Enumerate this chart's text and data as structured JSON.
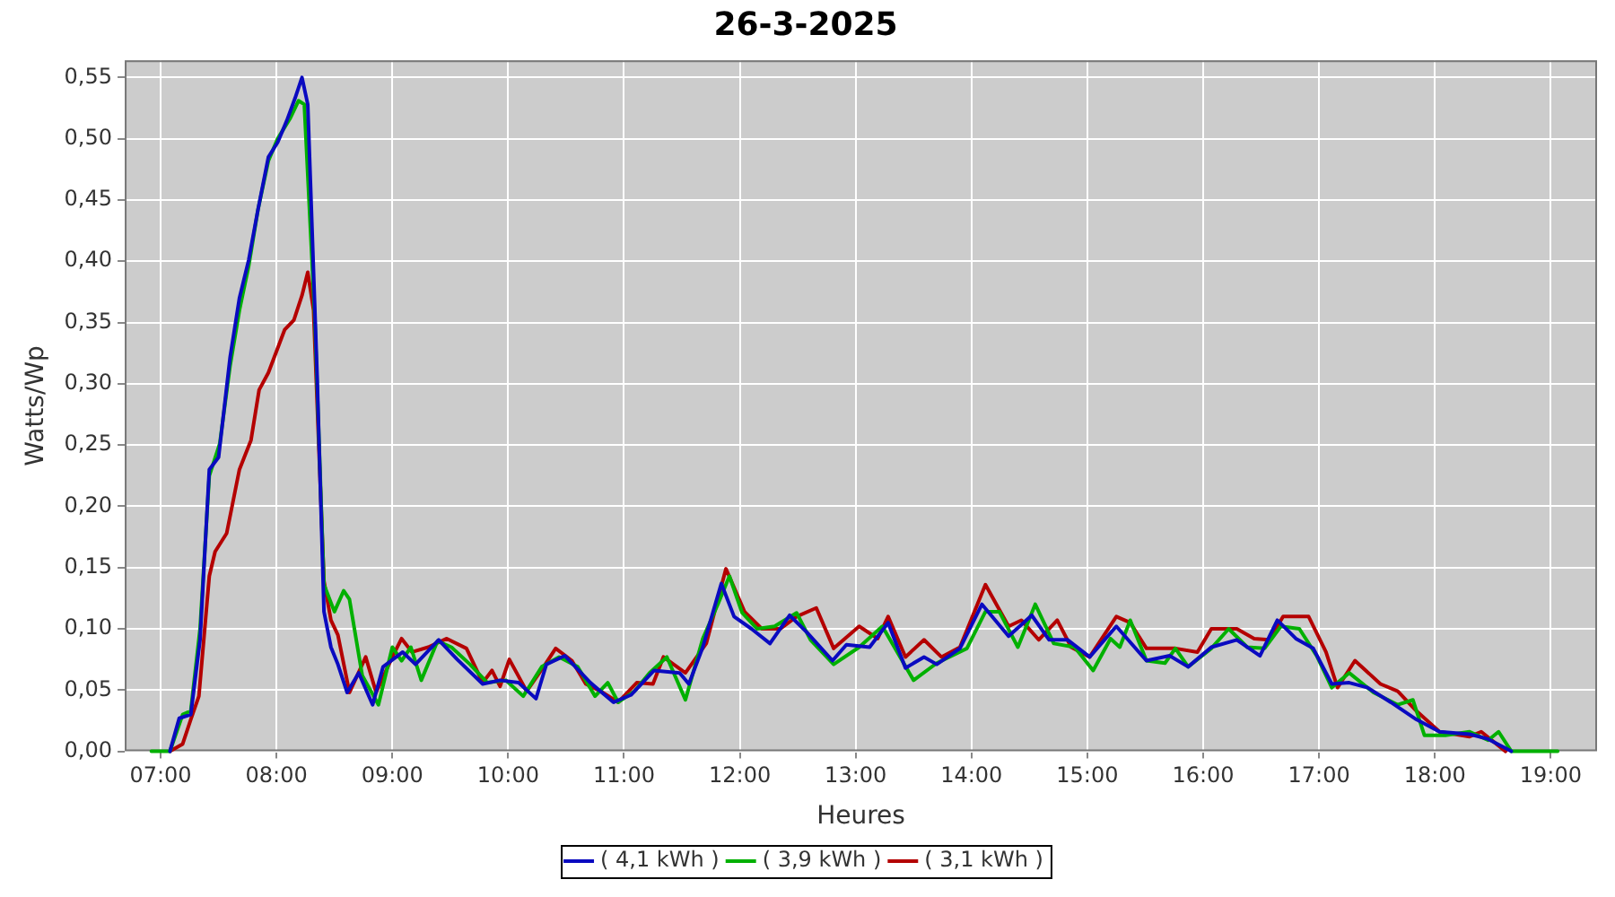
{
  "chart_data": {
    "type": "line",
    "title": "26-3-2025",
    "xlabel": "Heures",
    "ylabel": "Watts/Wp",
    "xlim": [
      6.69,
      19.4
    ],
    "xticks": [
      {
        "value": 7,
        "label": "07:00"
      },
      {
        "value": 8,
        "label": "08:00"
      },
      {
        "value": 9,
        "label": "09:00"
      },
      {
        "value": 10,
        "label": "10:00"
      },
      {
        "value": 11,
        "label": "11:00"
      },
      {
        "value": 12,
        "label": "12:00"
      },
      {
        "value": 13,
        "label": "13:00"
      },
      {
        "value": 14,
        "label": "14:00"
      },
      {
        "value": 15,
        "label": "15:00"
      },
      {
        "value": 16,
        "label": "16:00"
      },
      {
        "value": 17,
        "label": "17:00"
      },
      {
        "value": 18,
        "label": "18:00"
      },
      {
        "value": 19,
        "label": "19:00"
      }
    ],
    "ylim": [
      0,
      0.564
    ],
    "yticks": [
      {
        "value": 0,
        "label": "0,00"
      },
      {
        "value": 0.05,
        "label": "0,05"
      },
      {
        "value": 0.1,
        "label": "0,10"
      },
      {
        "value": 0.15,
        "label": "0,15"
      },
      {
        "value": 0.2,
        "label": "0,20"
      },
      {
        "value": 0.25,
        "label": "0,25"
      },
      {
        "value": 0.3,
        "label": "0,30"
      },
      {
        "value": 0.35,
        "label": "0,35"
      },
      {
        "value": 0.4,
        "label": "0,40"
      },
      {
        "value": 0.45,
        "label": "0,45"
      },
      {
        "value": 0.5,
        "label": "0,50"
      },
      {
        "value": 0.55,
        "label": "0,55"
      }
    ],
    "grid": true,
    "legend": "bottom",
    "marker": "none",
    "line_style": "solid",
    "series": [
      {
        "name": "( 4,1 kWh )",
        "color": "#0a0ac0",
        "x": [
          7.08,
          7.16,
          7.26,
          7.34,
          7.42,
          7.5,
          7.6,
          7.68,
          7.76,
          7.84,
          7.93,
          8.01,
          8.09,
          8.16,
          8.22,
          8.27,
          8.35,
          8.41,
          8.47,
          8.53,
          8.61,
          8.71,
          8.83,
          8.92,
          9.09,
          9.2,
          9.4,
          9.56,
          9.78,
          9.93,
          10.09,
          10.24,
          10.33,
          10.49,
          10.71,
          10.91,
          11.06,
          11.26,
          11.48,
          11.56,
          11.68,
          11.84,
          11.95,
          12.1,
          12.26,
          12.43,
          12.58,
          12.8,
          12.92,
          13.12,
          13.28,
          13.43,
          13.59,
          13.7,
          13.9,
          14.09,
          14.32,
          14.52,
          14.67,
          14.83,
          15.02,
          15.25,
          15.51,
          15.71,
          15.87,
          16.07,
          16.29,
          16.49,
          16.64,
          16.8,
          16.95,
          17.11,
          17.26,
          17.42,
          17.62,
          17.84,
          18.04,
          18.3,
          18.46,
          18.66
        ],
        "values": [
          0,
          0.027,
          0.03,
          0.091,
          0.23,
          0.24,
          0.322,
          0.37,
          0.401,
          0.442,
          0.485,
          0.497,
          0.515,
          0.533,
          0.55,
          0.528,
          0.309,
          0.114,
          0.085,
          0.071,
          0.048,
          0.064,
          0.038,
          0.069,
          0.081,
          0.071,
          0.091,
          0.075,
          0.055,
          0.058,
          0.056,
          0.043,
          0.071,
          0.078,
          0.056,
          0.04,
          0.046,
          0.066,
          0.064,
          0.055,
          0.085,
          0.137,
          0.11,
          0.1,
          0.088,
          0.111,
          0.097,
          0.074,
          0.087,
          0.085,
          0.105,
          0.068,
          0.077,
          0.071,
          0.084,
          0.12,
          0.094,
          0.111,
          0.091,
          0.091,
          0.077,
          0.102,
          0.074,
          0.078,
          0.069,
          0.085,
          0.091,
          0.078,
          0.107,
          0.092,
          0.084,
          0.055,
          0.056,
          0.052,
          0.04,
          0.026,
          0.016,
          0.014,
          0.01,
          0
        ]
      },
      {
        "name": "( 3,9 kWh )",
        "color": "#00b000",
        "x": [
          6.92,
          7.08,
          7.19,
          7.26,
          7.34,
          7.42,
          7.51,
          7.6,
          7.68,
          7.76,
          7.84,
          7.93,
          8.01,
          8.12,
          8.19,
          8.24,
          8.33,
          8.41,
          8.5,
          8.58,
          8.63,
          8.74,
          8.88,
          9,
          9.08,
          9.16,
          9.25,
          9.39,
          9.51,
          9.67,
          9.82,
          9.98,
          10.13,
          10.29,
          10.44,
          10.6,
          10.75,
          10.86,
          10.95,
          11.09,
          11.22,
          11.37,
          11.53,
          11.68,
          11.81,
          11.91,
          12.02,
          12.15,
          12.3,
          12.49,
          12.61,
          12.81,
          13.03,
          13.23,
          13.5,
          13.7,
          13.96,
          14.12,
          14.24,
          14.4,
          14.55,
          14.71,
          14.89,
          15.05,
          15.2,
          15.28,
          15.37,
          15.51,
          15.67,
          15.76,
          15.87,
          16.07,
          16.22,
          16.38,
          16.53,
          16.67,
          16.83,
          16.98,
          17.11,
          17.26,
          17.47,
          17.68,
          17.81,
          17.91,
          18.09,
          18.3,
          18.46,
          18.55,
          18.66,
          19.06
        ],
        "values": [
          0,
          0,
          0.03,
          0.033,
          0.1,
          0.225,
          0.251,
          0.315,
          0.36,
          0.396,
          0.442,
          0.482,
          0.5,
          0.517,
          0.531,
          0.528,
          0.355,
          0.136,
          0.114,
          0.131,
          0.124,
          0.062,
          0.038,
          0.085,
          0.074,
          0.085,
          0.058,
          0.09,
          0.085,
          0.071,
          0.056,
          0.058,
          0.045,
          0.069,
          0.077,
          0.069,
          0.045,
          0.056,
          0.04,
          0.049,
          0.064,
          0.077,
          0.042,
          0.092,
          0.12,
          0.143,
          0.113,
          0.1,
          0.102,
          0.113,
          0.091,
          0.071,
          0.085,
          0.102,
          0.058,
          0.072,
          0.084,
          0.114,
          0.114,
          0.085,
          0.12,
          0.088,
          0.085,
          0.066,
          0.092,
          0.085,
          0.107,
          0.074,
          0.072,
          0.084,
          0.069,
          0.084,
          0.1,
          0.085,
          0.084,
          0.102,
          0.1,
          0.078,
          0.052,
          0.064,
          0.048,
          0.038,
          0.042,
          0.013,
          0.013,
          0.016,
          0.009,
          0.016,
          0,
          0
        ]
      },
      {
        "name": "( 3,1 kWh )",
        "color": "#b40000",
        "x": [
          7.08,
          7.19,
          7.26,
          7.33,
          7.42,
          7.47,
          7.57,
          7.68,
          7.78,
          7.85,
          7.93,
          8.07,
          8.15,
          8.22,
          8.27,
          8.32,
          8.41,
          8.47,
          8.53,
          8.63,
          8.77,
          8.86,
          9,
          9.08,
          9.17,
          9.31,
          9.47,
          9.64,
          9.78,
          9.86,
          9.93,
          10.01,
          10.16,
          10.32,
          10.41,
          10.55,
          10.67,
          10.8,
          10.95,
          11.11,
          11.25,
          11.34,
          11.53,
          11.71,
          11.88,
          12.04,
          12.19,
          12.35,
          12.49,
          12.66,
          12.81,
          13.03,
          13.19,
          13.28,
          13.43,
          13.59,
          13.74,
          13.9,
          14.12,
          14.32,
          14.43,
          14.58,
          14.74,
          14.86,
          15.02,
          15.25,
          15.37,
          15.51,
          15.76,
          15.95,
          16.07,
          16.29,
          16.44,
          16.57,
          16.69,
          16.91,
          17.06,
          17.16,
          17.31,
          17.53,
          17.68,
          17.84,
          18.04,
          18.3,
          18.4,
          18.61
        ],
        "values": [
          0,
          0.006,
          0.026,
          0.045,
          0.143,
          0.163,
          0.178,
          0.23,
          0.254,
          0.295,
          0.309,
          0.344,
          0.352,
          0.372,
          0.391,
          0.36,
          0.139,
          0.107,
          0.095,
          0.048,
          0.077,
          0.048,
          0.077,
          0.092,
          0.081,
          0.085,
          0.092,
          0.084,
          0.056,
          0.066,
          0.053,
          0.075,
          0.049,
          0.071,
          0.084,
          0.074,
          0.055,
          0.049,
          0.04,
          0.056,
          0.055,
          0.077,
          0.064,
          0.088,
          0.149,
          0.114,
          0.1,
          0.1,
          0.11,
          0.117,
          0.084,
          0.102,
          0.092,
          0.11,
          0.077,
          0.091,
          0.077,
          0.085,
          0.136,
          0.102,
          0.107,
          0.091,
          0.107,
          0.085,
          0.077,
          0.11,
          0.105,
          0.084,
          0.084,
          0.081,
          0.1,
          0.1,
          0.092,
          0.091,
          0.11,
          0.11,
          0.081,
          0.052,
          0.074,
          0.055,
          0.049,
          0.033,
          0.016,
          0.012,
          0.016,
          0
        ]
      }
    ]
  }
}
